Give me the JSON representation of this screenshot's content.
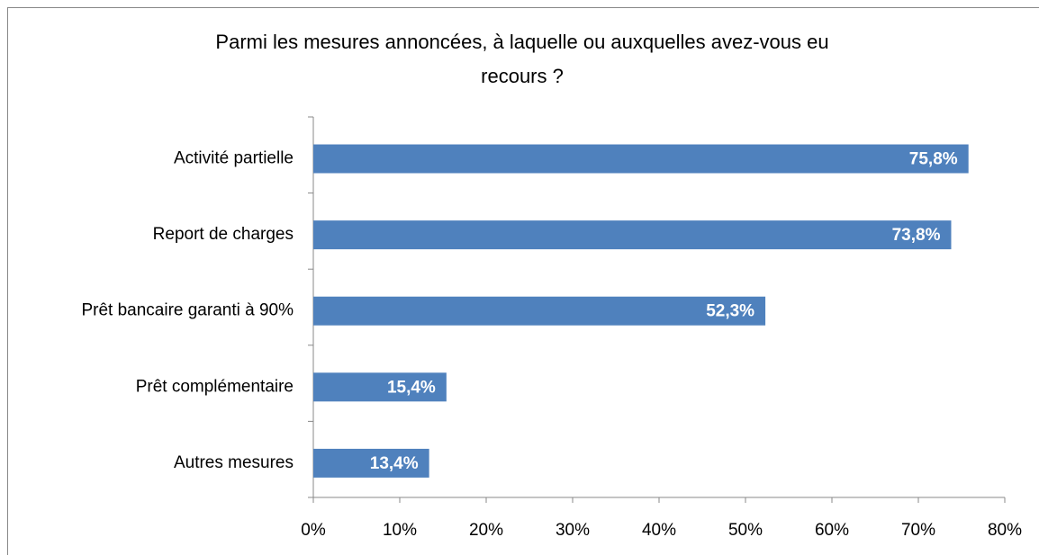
{
  "chart_data": {
    "type": "barh",
    "title": "Parmi les mesures annoncées, à laquelle ou auxquelles avez-vous eu recours ?",
    "categories": [
      "Activité partielle",
      "Report de charges",
      "Prêt bancaire garanti à 90%",
      "Prêt complémentaire",
      "Autres mesures"
    ],
    "values": [
      75.8,
      73.8,
      52.3,
      15.4,
      13.4
    ],
    "value_labels": [
      "75,8%",
      "73,8%",
      "52,3%",
      "15,4%",
      "13,4%"
    ],
    "color": "#4f81bd",
    "xlim": [
      0,
      80
    ],
    "xticks": [
      {
        "value": 0,
        "label": "0%"
      },
      {
        "value": 10,
        "label": "10%"
      },
      {
        "value": 20,
        "label": "20%"
      },
      {
        "value": 30,
        "label": "30%"
      },
      {
        "value": 40,
        "label": "40%"
      },
      {
        "value": 50,
        "label": "50%"
      },
      {
        "value": 60,
        "label": "60%"
      },
      {
        "value": 70,
        "label": "70%"
      },
      {
        "value": 80,
        "label": "80%"
      }
    ],
    "grid": false
  }
}
